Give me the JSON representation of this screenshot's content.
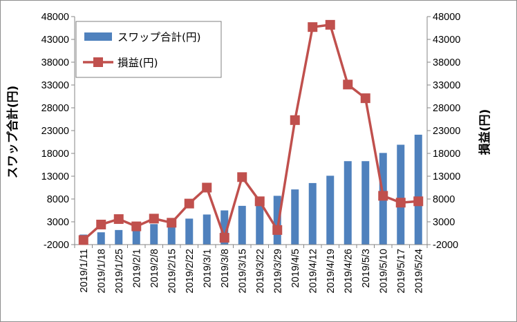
{
  "chart_data": {
    "type": "bar+line",
    "categories": [
      "2019/1/11",
      "2019/1/18",
      "2019/1/25",
      "2019/2/1",
      "2019/2/8",
      "2019/2/15",
      "2019/2/22",
      "2019/3/1",
      "2019/3/8",
      "2019/3/15",
      "2019/3/22",
      "2019/3/29",
      "2019/4/5",
      "2019/4/12",
      "2019/4/19",
      "2019/4/26",
      "2019/5/3",
      "2019/5/10",
      "2019/5/17",
      "2019/5/24"
    ],
    "series": [
      {
        "name": "スワップ合計(円)",
        "kind": "bar",
        "axis": "left",
        "color": "#4f81bd",
        "values": [
          200,
          700,
          1200,
          1800,
          2500,
          2800,
          3700,
          4600,
          5500,
          6500,
          7500,
          8700,
          10100,
          11500,
          13100,
          16300,
          16300,
          18100,
          19900,
          22100
        ]
      },
      {
        "name": "損益(円)",
        "kind": "line",
        "axis": "right",
        "color": "#c0504d",
        "values": [
          -1000,
          2400,
          3600,
          2000,
          3700,
          2800,
          7000,
          10500,
          -500,
          12800,
          7500,
          1200,
          25300,
          45700,
          46200,
          33100,
          30100,
          8700,
          7200,
          7500
        ]
      }
    ],
    "ylabel": "スワップ合計(円)",
    "y2label": "損益(円)",
    "ylim": [
      -2000,
      48000
    ],
    "y2lim": [
      -2000,
      48000
    ],
    "yticks": [
      "48000",
      "43000",
      "38000",
      "33000",
      "28000",
      "23000",
      "18000",
      "13000",
      "8000",
      "3000",
      "-2000"
    ],
    "y2ticks": [
      "48000",
      "43000",
      "38000",
      "33000",
      "28000",
      "23000",
      "18000",
      "13000",
      "8000",
      "3000",
      "-2000"
    ],
    "grid": false,
    "legend": "top-left"
  }
}
